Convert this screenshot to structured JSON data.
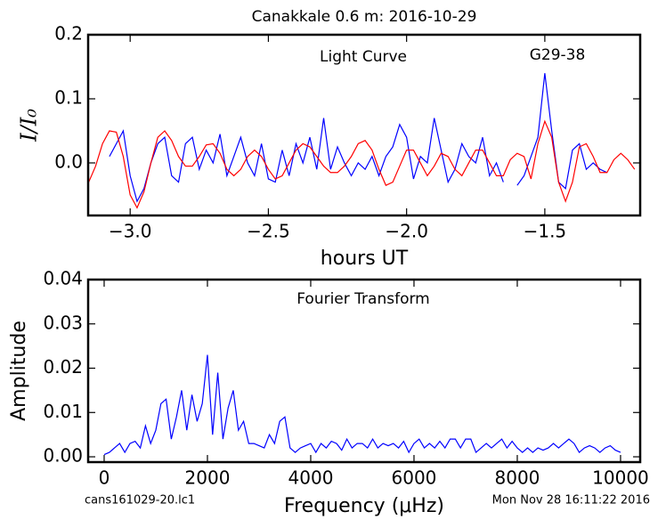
{
  "chart_data": [
    {
      "type": "line",
      "title": "Canakkale 0.6 m:  2016-10-29",
      "xlabel": "hours UT",
      "ylabel": "I/I₀",
      "annotations": [
        "Light Curve",
        "G29-38"
      ],
      "x": [
        -3.15,
        -3.125,
        -3.1,
        -3.075,
        -3.05,
        -3.025,
        -3.0,
        -2.975,
        -2.95,
        -2.925,
        -2.9,
        -2.875,
        -2.85,
        -2.825,
        -2.8,
        -2.775,
        -2.75,
        -2.725,
        -2.7,
        -2.675,
        -2.65,
        -2.625,
        -2.6,
        -2.575,
        -2.55,
        -2.525,
        -2.5,
        -2.475,
        -2.45,
        -2.425,
        -2.4,
        -2.375,
        -2.35,
        -2.325,
        -2.3,
        -2.275,
        -2.25,
        -2.225,
        -2.2,
        -2.175,
        -2.15,
        -2.125,
        -2.1,
        -2.075,
        -2.05,
        -2.025,
        -2.0,
        -1.975,
        -1.95,
        -1.925,
        -1.9,
        -1.875,
        -1.85,
        -1.825,
        -1.8,
        -1.775,
        -1.75,
        -1.725,
        -1.7,
        -1.675,
        -1.65,
        -1.625,
        -1.6,
        -1.575,
        -1.55,
        -1.525,
        -1.5,
        -1.475,
        -1.45,
        -1.425,
        -1.4,
        -1.375,
        -1.35,
        -1.325,
        -1.3,
        -1.275,
        -1.25,
        -1.225,
        -1.2,
        -1.175
      ],
      "series": [
        {
          "color": "#0000ff",
          "values": [
            null,
            null,
            null,
            0.01,
            0.03,
            0.05,
            -0.02,
            -0.06,
            -0.04,
            0.0,
            0.03,
            0.04,
            -0.02,
            -0.03,
            0.03,
            0.04,
            -0.01,
            0.02,
            0.0,
            0.045,
            -0.02,
            0.01,
            0.04,
            0.0,
            -0.02,
            0.03,
            -0.025,
            -0.03,
            0.02,
            -0.02,
            0.03,
            0.0,
            0.04,
            -0.01,
            0.07,
            -0.01,
            0.025,
            0.0,
            -0.02,
            0.0,
            -0.01,
            0.01,
            -0.02,
            0.01,
            0.025,
            0.06,
            0.04,
            -0.025,
            0.01,
            0.0,
            0.07,
            0.02,
            -0.03,
            -0.01,
            0.03,
            0.01,
            0.0,
            0.04,
            -0.02,
            0.0,
            -0.03,
            null,
            -0.035,
            -0.02,
            0.01,
            0.04,
            0.14,
            0.05,
            -0.03,
            -0.04,
            0.02,
            0.03,
            -0.01,
            0.0,
            -0.01,
            -0.015,
            null,
            null,
            null,
            null
          ]
        },
        {
          "color": "#ff0000",
          "values": [
            -0.03,
            -0.005,
            0.03,
            0.05,
            0.048,
            0.01,
            -0.05,
            -0.07,
            -0.045,
            0.0,
            0.04,
            0.05,
            0.035,
            0.01,
            -0.005,
            -0.005,
            0.01,
            0.028,
            0.03,
            0.015,
            -0.01,
            -0.02,
            -0.01,
            0.01,
            0.02,
            0.01,
            -0.01,
            -0.025,
            -0.02,
            0.0,
            0.02,
            0.03,
            0.025,
            0.01,
            -0.005,
            -0.015,
            -0.015,
            -0.005,
            0.01,
            0.03,
            0.035,
            0.02,
            -0.01,
            -0.035,
            -0.03,
            -0.005,
            0.02,
            0.02,
            0.0,
            -0.02,
            -0.005,
            0.015,
            0.01,
            -0.01,
            -0.02,
            0.0,
            0.02,
            0.02,
            0.0,
            -0.02,
            -0.02,
            0.005,
            0.015,
            0.01,
            -0.025,
            0.03,
            0.065,
            0.04,
            -0.03,
            -0.06,
            -0.03,
            0.025,
            0.03,
            0.01,
            -0.015,
            -0.015,
            0.005,
            0.015,
            0.005,
            -0.01
          ]
        }
      ],
      "xlim": [
        -3.152,
        -1.155
      ],
      "ylim": [
        -0.082,
        0.2
      ],
      "xticks": [
        {
          "value": -3.0,
          "label": "−3.0"
        },
        {
          "value": -2.5,
          "label": "−2.5"
        },
        {
          "value": -2.0,
          "label": "−2.0"
        },
        {
          "value": -1.5,
          "label": "−1.5"
        }
      ],
      "yticks": [
        {
          "value": 0,
          "label": "0.0"
        },
        0.1,
        0.2
      ],
      "grid": false
    },
    {
      "type": "line",
      "xlabel": "Frequency (μHz)",
      "ylabel": "Amplitude",
      "annotations": [
        "Fourier Transform"
      ],
      "x": [
        0,
        100,
        200,
        300,
        400,
        500,
        600,
        700,
        800,
        900,
        1000,
        1100,
        1200,
        1300,
        1400,
        1500,
        1600,
        1700,
        1800,
        1900,
        2000,
        2100,
        2200,
        2300,
        2400,
        2500,
        2600,
        2700,
        2800,
        2900,
        3000,
        3100,
        3200,
        3300,
        3400,
        3500,
        3600,
        3700,
        3800,
        3900,
        4000,
        4100,
        4200,
        4300,
        4400,
        4500,
        4600,
        4700,
        4800,
        4900,
        5000,
        5100,
        5200,
        5300,
        5400,
        5500,
        5600,
        5700,
        5800,
        5900,
        6000,
        6100,
        6200,
        6300,
        6400,
        6500,
        6600,
        6700,
        6800,
        6900,
        7000,
        7100,
        7200,
        7300,
        7400,
        7500,
        7600,
        7700,
        7800,
        7900,
        8000,
        8100,
        8200,
        8300,
        8400,
        8500,
        8600,
        8700,
        8800,
        8900,
        9000,
        9100,
        9200,
        9300,
        9400,
        9500,
        9600,
        9700,
        9800,
        9900,
        10000
      ],
      "series": [
        {
          "color": "#0000ff",
          "values": [
            0.0005,
            0.001,
            0.002,
            0.003,
            0.001,
            0.003,
            0.0035,
            0.002,
            0.007,
            0.003,
            0.006,
            0.012,
            0.013,
            0.004,
            0.009,
            0.015,
            0.006,
            0.014,
            0.008,
            0.012,
            0.023,
            0.005,
            0.019,
            0.004,
            0.011,
            0.015,
            0.006,
            0.008,
            0.003,
            0.003,
            0.0025,
            0.002,
            0.005,
            0.003,
            0.008,
            0.009,
            0.002,
            0.001,
            0.002,
            0.0025,
            0.003,
            0.001,
            0.003,
            0.002,
            0.0035,
            0.003,
            0.0015,
            0.004,
            0.002,
            0.003,
            0.003,
            0.002,
            0.004,
            0.002,
            0.003,
            0.0025,
            0.003,
            0.002,
            0.0035,
            0.001,
            0.003,
            0.004,
            0.002,
            0.003,
            0.002,
            0.0035,
            0.002,
            0.004,
            0.004,
            0.002,
            0.004,
            0.004,
            0.001,
            0.002,
            0.003,
            0.002,
            0.003,
            0.004,
            0.002,
            0.0035,
            0.002,
            0.001,
            0.002,
            0.001,
            0.002,
            0.0015,
            0.002,
            0.003,
            0.002,
            0.003,
            0.004,
            0.003,
            0.001,
            0.002,
            0.0025,
            0.002,
            0.001,
            0.002,
            0.0025,
            0.0015,
            0.001
          ]
        }
      ],
      "xlim": [
        -310,
        10380
      ],
      "ylim": [
        -0.0012,
        0.04
      ],
      "xticks": [
        0,
        2000,
        4000,
        6000,
        8000,
        10000
      ],
      "yticks": [
        {
          "value": 0,
          "label": "0.00"
        },
        {
          "value": 0.01,
          "label": "0.01"
        },
        {
          "value": 0.02,
          "label": "0.02"
        },
        {
          "value": 0.03,
          "label": "0.03"
        },
        {
          "value": 0.04,
          "label": "0.04"
        }
      ],
      "grid": false
    }
  ],
  "footer": {
    "left": "cans161029-20.lc1",
    "right": "Mon Nov 28 16:11:22 2016"
  }
}
